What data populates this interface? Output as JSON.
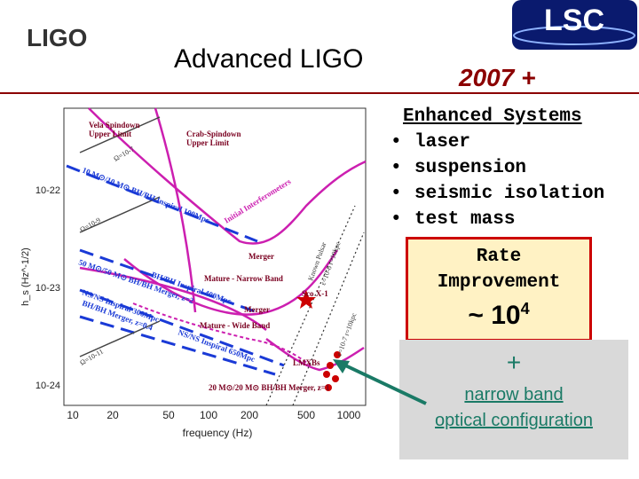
{
  "header": {
    "logo_left": "LIGO",
    "title": "Advanced LIGO",
    "logo_right": "LSC",
    "year": "2007 +"
  },
  "plot": {
    "y_axis_label": "h_s (Hz^-1/2)",
    "x_axis_label": "frequency (Hz)",
    "x_ticks": [
      "10",
      "20",
      "50",
      "100",
      "200",
      "500",
      "1000"
    ],
    "y_ticks": [
      "10-22",
      "10-23",
      "10-24"
    ],
    "annotations": {
      "vela": "Vela Spindown",
      "vela_ul": "Upper Limit",
      "crab": "Crab-Spindown",
      "crab_ul": "Upper Limit",
      "initial": "Initial Interferometers",
      "merger1": "Merger",
      "nb": "Mature - Narrow Band",
      "merger2": "Merger",
      "sco": "Sco X-1",
      "wb": "Mature - Wide Band",
      "lmxb": "LMXBs",
      "known_pulsar": "Known Pulsar",
      "eps1": "ε=10-6 r=10kpc",
      "eps2": "ε=10-7 r=10kpc",
      "bh1": "10 M⊙/10 M⊙ BH/BH Inspiral 100Mpc",
      "bh2": "BH/BH Inspiral 400Mpc",
      "bh3": "50 M⊙/50 M⊙ BH/BH Merger, z=2",
      "ns1": "NS/NS Inspiral 300Mpc",
      "ns2": "NS/NS Inspiral 650Mpc",
      "bh4": "BH/BH Merger, z=0.4",
      "bh5": "20 M⊙/20 M⊙ BH/BH Merger, z=1",
      "omega1": "Ω=10-7",
      "omega2": "Ω=10-9",
      "omega3": "Ω=10-11"
    }
  },
  "enhanced": {
    "heading": "Enhanced Systems",
    "bullet": "•",
    "items": [
      "laser",
      "suspension",
      "seismic isolation",
      "test mass"
    ]
  },
  "rate": {
    "line1": "Rate",
    "line2": "Improvement",
    "prefix": "~ 10",
    "exponent": "4",
    "border_color": "#cc0000",
    "fill_color": "#fff2c4"
  },
  "narrow": {
    "plus": "+",
    "line1": "narrow band",
    "line2": "optical configuration",
    "color": "#1a7a66"
  }
}
